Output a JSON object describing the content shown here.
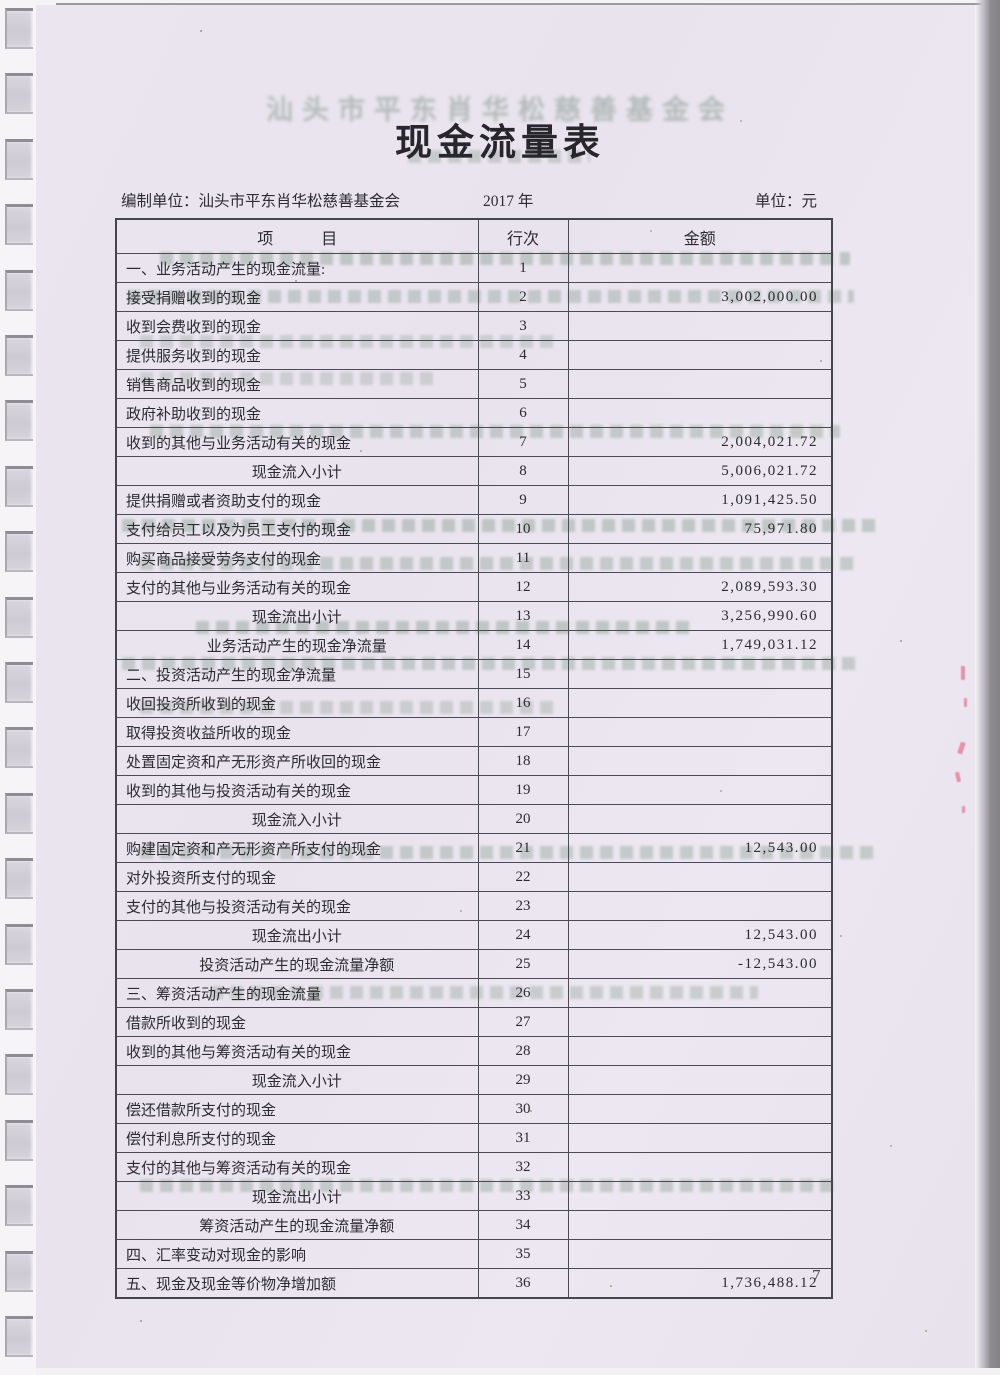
{
  "document": {
    "ghost_title": "汕头市平东肖华松慈善基金会",
    "title": "现金流量表",
    "prepared_by": "编制单位：汕头市平东肖华松慈善基金会",
    "year": "2017 年",
    "unit": "单位：元",
    "page_number": "7"
  },
  "table": {
    "headers": {
      "item": "项　　　目",
      "line": "行次",
      "amount": "金额"
    },
    "rows": [
      {
        "item": "一、业务活动产生的现金流量:",
        "line": "1",
        "amount": "",
        "style": "section"
      },
      {
        "item": "接受捐赠收到的现金",
        "line": "2",
        "amount": "3,002,000.00",
        "style": "item"
      },
      {
        "item": "收到会费收到的现金",
        "line": "3",
        "amount": "",
        "style": "item"
      },
      {
        "item": "提供服务收到的现金",
        "line": "4",
        "amount": "",
        "style": "item"
      },
      {
        "item": "销售商品收到的现金",
        "line": "5",
        "amount": "",
        "style": "item"
      },
      {
        "item": "政府补助收到的现金",
        "line": "6",
        "amount": "",
        "style": "item"
      },
      {
        "item": "收到的其他与业务活动有关的现金",
        "line": "7",
        "amount": "2,004,021.72",
        "style": "item"
      },
      {
        "item": "现金流入小计",
        "line": "8",
        "amount": "5,006,021.72",
        "style": "subtotal"
      },
      {
        "item": "提供捐赠或者资助支付的现金",
        "line": "9",
        "amount": "1,091,425.50",
        "style": "item"
      },
      {
        "item": "支付给员工以及为员工支付的现金",
        "line": "10",
        "amount": "75,971.80",
        "style": "item"
      },
      {
        "item": "购买商品接受劳务支付的现金",
        "line": "11",
        "amount": "",
        "style": "item"
      },
      {
        "item": "支付的其他与业务活动有关的现金",
        "line": "12",
        "amount": "2,089,593.30",
        "style": "item"
      },
      {
        "item": "现金流出小计",
        "line": "13",
        "amount": "3,256,990.60",
        "style": "subtotal"
      },
      {
        "item": "业务活动产生的现金净流量",
        "line": "14",
        "amount": "1,749,031.12",
        "style": "subtotal"
      },
      {
        "item": "二、投资活动产生的现金净流量",
        "line": "15",
        "amount": "",
        "style": "section"
      },
      {
        "item": "收回投资所收到的现金",
        "line": "16",
        "amount": "",
        "style": "item"
      },
      {
        "item": "取得投资收益所收的现金",
        "line": "17",
        "amount": "",
        "style": "item"
      },
      {
        "item": "处置固定资和产无形资产所收回的现金",
        "line": "18",
        "amount": "",
        "style": "item"
      },
      {
        "item": "收到的其他与投资活动有关的现金",
        "line": "19",
        "amount": "",
        "style": "item"
      },
      {
        "item": "现金流入小计",
        "line": "20",
        "amount": "",
        "style": "subtotal"
      },
      {
        "item": "购建固定资和产无形资产所支付的现金",
        "line": "21",
        "amount": "12,543.00",
        "style": "item"
      },
      {
        "item": "对外投资所支付的现金",
        "line": "22",
        "amount": "",
        "style": "item"
      },
      {
        "item": "支付的其他与投资活动有关的现金",
        "line": "23",
        "amount": "",
        "style": "item"
      },
      {
        "item": "现金流出小计",
        "line": "24",
        "amount": "12,543.00",
        "style": "subtotal"
      },
      {
        "item": "投资活动产生的现金流量净额",
        "line": "25",
        "amount": "-12,543.00",
        "style": "subtotal"
      },
      {
        "item": "三、筹资活动产生的现金流量",
        "line": "26",
        "amount": "",
        "style": "section"
      },
      {
        "item": "借款所收到的现金",
        "line": "27",
        "amount": "",
        "style": "item"
      },
      {
        "item": "收到的其他与筹资活动有关的现金",
        "line": "28",
        "amount": "",
        "style": "item"
      },
      {
        "item": "现金流入小计",
        "line": "29",
        "amount": "",
        "style": "subtotal"
      },
      {
        "item": "偿还借款所支付的现金",
        "line": "30",
        "amount": "",
        "style": "item"
      },
      {
        "item": "偿付利息所支付的现金",
        "line": "31",
        "amount": "",
        "style": "item"
      },
      {
        "item": "支付的其他与筹资活动有关的现金",
        "line": "32",
        "amount": "",
        "style": "item"
      },
      {
        "item": "现金流出小计",
        "line": "33",
        "amount": "",
        "style": "subtotal"
      },
      {
        "item": "筹资活动产生的现金流量净额",
        "line": "34",
        "amount": "",
        "style": "subtotal"
      },
      {
        "item": "四、汇率变动对现金的影响",
        "line": "35",
        "amount": "",
        "style": "section"
      },
      {
        "item": "五、现金及现金等价物净增加额",
        "line": "36",
        "amount": "1,736,488.12",
        "style": "section"
      }
    ]
  }
}
